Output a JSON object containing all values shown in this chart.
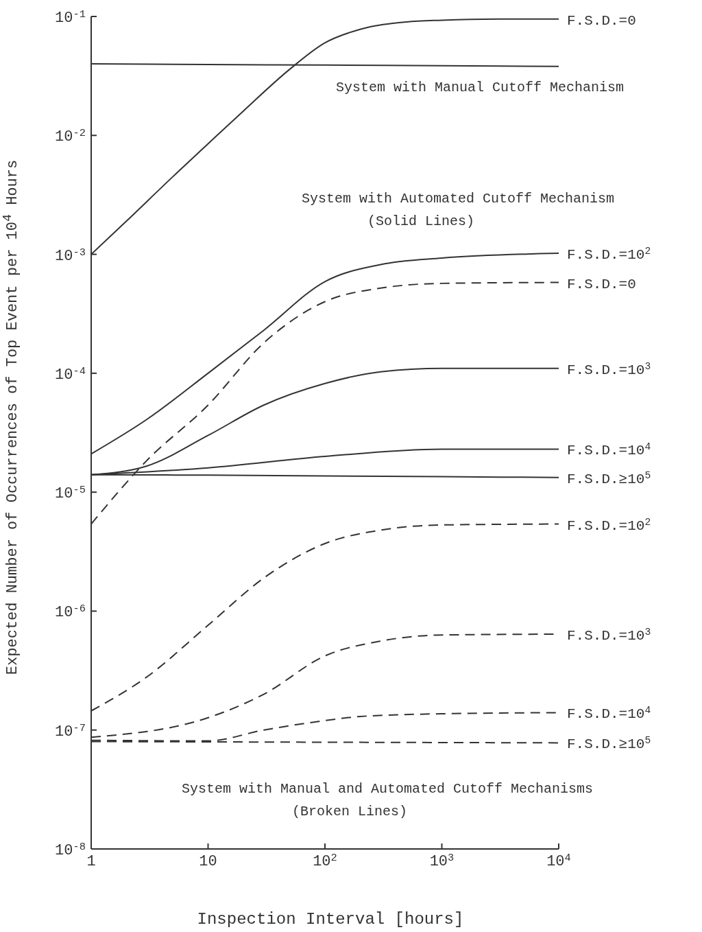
{
  "chart_data": {
    "type": "line",
    "xlabel": "Inspection Interval [hours]",
    "ylabel": "Expected Number of Occurrences of Top Event per 10$^{4}$ Hours",
    "annotations": [
      "System with Manual Cutoff Mechanism",
      "System with Automated Cutoff Mechanism",
      "(Solid Lines)",
      "System with Manual and Automated Cutoff Mechanisms",
      "(Broken Lines)"
    ],
    "log": "xy",
    "grid": false,
    "legend": false,
    "marker": "none",
    "xlim": [
      1,
      10000
    ],
    "xticks": [
      1,
      10,
      {
        "value": 100,
        "label": "10$^{2}$"
      },
      {
        "value": 1000,
        "label": "10$^{3}$"
      },
      {
        "value": 10000,
        "label": "10$^{4}$"
      }
    ],
    "ylim": [
      1e-08,
      0.1
    ],
    "yticks": [
      {
        "value": 1e-08,
        "label": "10$^{-8}$"
      },
      {
        "value": 1e-07,
        "label": "10$^{-7}$"
      },
      {
        "value": 1e-06,
        "label": "10$^{-6}$"
      },
      {
        "value": 1e-05,
        "label": "10$^{-5}$"
      },
      {
        "value": 0.0001,
        "label": "10$^{-4}$"
      },
      {
        "value": 0.001,
        "label": "10$^{-3}$"
      },
      {
        "value": 0.01,
        "label": "10$^{-2}$"
      },
      {
        "value": 0.1,
        "label": "10$^{-1}$"
      }
    ],
    "series": [
      {
        "color": "#333333",
        "line_style": "solid",
        "x": [
          1,
          10,
          100,
          1000,
          10000
        ],
        "values": [
          0.04,
          0.0395,
          0.039,
          0.0385,
          0.038
        ]
      },
      {
        "name": "F.S.D.=0",
        "color": "#333333",
        "line_style": "solid",
        "x": [
          1,
          2,
          5,
          10,
          20,
          50,
          100,
          200,
          500,
          1000,
          3000,
          10000
        ],
        "values": [
          0.001,
          0.0019,
          0.0045,
          0.0085,
          0.016,
          0.036,
          0.06,
          0.078,
          0.09,
          0.093,
          0.095,
          0.095
        ]
      },
      {
        "name": "F.S.D.=10$^{2}$",
        "color": "#333333",
        "line_style": "solid",
        "x": [
          1,
          3,
          10,
          30,
          100,
          300,
          1000,
          10000
        ],
        "values": [
          2.1e-05,
          4.1e-05,
          0.0001,
          0.00023,
          0.00059,
          0.00082,
          0.00093,
          0.00102
        ]
      },
      {
        "name": "F.S.D.=0",
        "color": "#333333",
        "line_style": "dashed",
        "x": [
          1,
          3,
          10,
          30,
          100,
          300,
          1000,
          10000
        ],
        "values": [
          5.4e-06,
          1.85e-05,
          5.4e-05,
          0.00018,
          0.0004,
          0.00052,
          0.00057,
          0.00058
        ]
      },
      {
        "name": "F.S.D.=10$^{3}$",
        "color": "#333333",
        "line_style": "solid",
        "x": [
          1,
          3,
          10,
          30,
          100,
          300,
          1000,
          10000
        ],
        "values": [
          1.4e-05,
          1.66e-05,
          3e-05,
          5.4e-05,
          8.2e-05,
          0.000103,
          0.00011,
          0.00011
        ]
      },
      {
        "name": "F.S.D.=10$^{4}$",
        "color": "#333333",
        "line_style": "solid",
        "x": [
          1,
          10,
          100,
          1000,
          10000
        ],
        "values": [
          1.4e-05,
          1.6e-05,
          2e-05,
          2.3e-05,
          2.3e-05
        ]
      },
      {
        "name": "F.S.D.≥10$^{5}$",
        "color": "#333333",
        "line_style": "solid",
        "x": [
          1,
          10,
          100,
          1000,
          10000
        ],
        "values": [
          1.4e-05,
          1.39e-05,
          1.37e-05,
          1.35e-05,
          1.33e-05
        ]
      },
      {
        "name": "F.S.D.=10$^{2}$",
        "color": "#333333",
        "line_style": "dashed",
        "x": [
          1,
          3,
          10,
          30,
          100,
          300,
          1000,
          10000
        ],
        "values": [
          1.45e-07,
          2.8e-07,
          7.6e-07,
          1.9e-06,
          3.7e-06,
          4.8e-06,
          5.3e-06,
          5.4e-06
        ]
      },
      {
        "name": "F.S.D.=10$^{3}$",
        "color": "#333333",
        "line_style": "dashed",
        "x": [
          1,
          10,
          30,
          100,
          300,
          1000,
          10000
        ],
        "values": [
          8.7e-08,
          1.27e-07,
          2e-07,
          4.2e-07,
          5.6e-07,
          6.3e-07,
          6.4e-07
        ]
      },
      {
        "name": "F.S.D.=10$^{4}$",
        "color": "#333333",
        "line_style": "dashed",
        "x": [
          1,
          10,
          30,
          100,
          200,
          1000,
          10000
        ],
        "values": [
          8.2e-08,
          8.1e-08,
          1e-07,
          1.2e-07,
          1.3e-07,
          1.37e-07,
          1.4e-07
        ]
      },
      {
        "name": "F.S.D.≥10$^{5}$",
        "color": "#333333",
        "line_style": "dashed",
        "x": [
          1,
          10,
          100,
          1000,
          10000
        ],
        "values": [
          8e-08,
          7.95e-08,
          7.9e-08,
          7.85e-08,
          7.8e-08
        ]
      }
    ]
  }
}
